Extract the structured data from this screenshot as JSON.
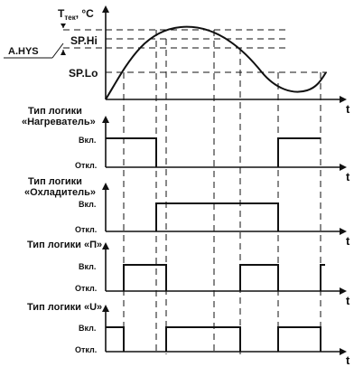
{
  "diagram": {
    "top_panel": {
      "y_axis_label": "T",
      "y_axis_subscript": "тек",
      "y_axis_unit": ", °C",
      "hysteresis_label": "A.HYS",
      "sp_hi_label": "SP.Hi",
      "sp_lo_label": "SP.Lo",
      "x_axis_label": "t"
    },
    "logic_panels": [
      {
        "title_line1": "Тип логики",
        "title_line2": "«Нагреватель»",
        "on_label": "Вкл.",
        "off_label": "Откл.",
        "x_axis_label": "t"
      },
      {
        "title_line1": "Тип логики",
        "title_line2": "«Охладитель»",
        "on_label": "Вкл.",
        "off_label": "Откл.",
        "x_axis_label": "t"
      },
      {
        "title_line1": "Тип логики «П»",
        "title_line2": "",
        "on_label": "Вкл.",
        "off_label": "Откл.",
        "x_axis_label": "t"
      },
      {
        "title_line1": "Тип логики «U»",
        "title_line2": "",
        "on_label": "Вкл.",
        "off_label": "Откл.",
        "x_axis_label": "t"
      }
    ]
  }
}
